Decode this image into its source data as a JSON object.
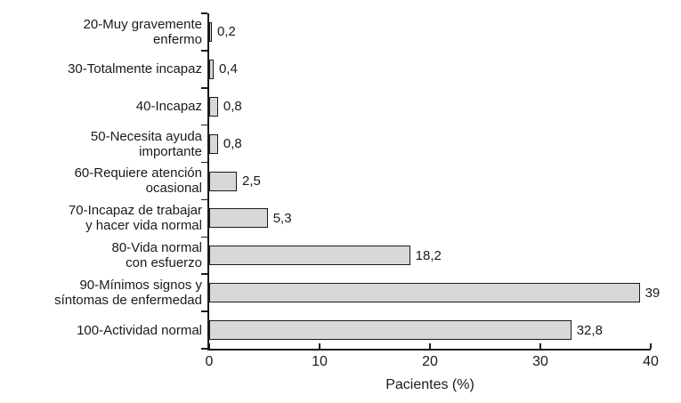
{
  "chart_data": {
    "type": "bar",
    "orientation": "horizontal",
    "title": "",
    "xlabel": "Pacientes (%)",
    "ylabel": "",
    "xlim": [
      0,
      40
    ],
    "xticks": [
      0,
      10,
      20,
      30,
      40
    ],
    "xtick_labels": [
      "0",
      "10",
      "20",
      "30",
      "40"
    ],
    "grid": false,
    "legend": "none",
    "categories": [
      "20-Muy gravemente\nenfermo",
      "30-Totalmente incapaz",
      "40-Incapaz",
      "50-Necesita ayuda\nimportante",
      "60-Requiere atención\nocasional",
      "70-Incapaz de trabajar\ny hacer vida normal",
      "80-Vida normal\ncon esfuerzo",
      "90-Mínimos signos y\nsíntomas de enfermedad",
      "100-Actividad normal"
    ],
    "values": [
      0.2,
      0.4,
      0.8,
      0.8,
      2.5,
      5.3,
      18.2,
      39,
      32.8
    ],
    "value_labels": [
      "0,2",
      "0,4",
      "0,8",
      "0,8",
      "2,5",
      "5,3",
      "18,2",
      "39",
      "32,8"
    ],
    "colors": {
      "bar_fill": "#d8d8d8",
      "bar_border": "#1a1a1a",
      "axis": "#1a1a1a",
      "text": "#1a1a1a",
      "background": "#ffffff"
    }
  }
}
